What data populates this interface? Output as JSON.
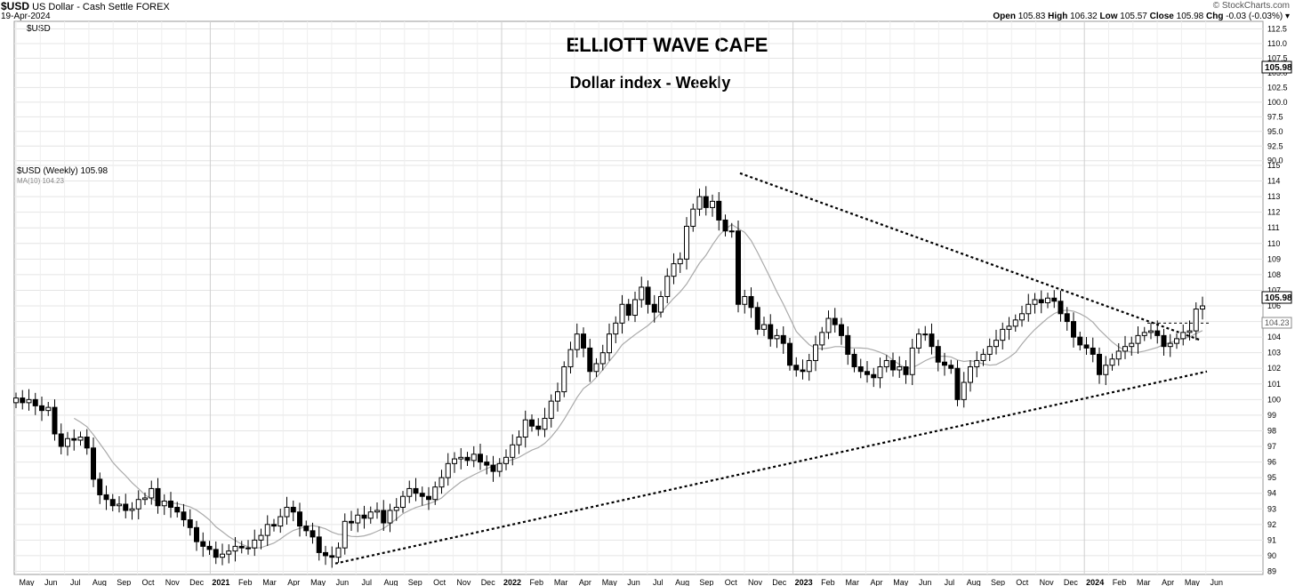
{
  "header": {
    "symbol": "$USD",
    "name": "US Dollar - Cash Settle",
    "exchange": "FOREX",
    "date": "19-Apr-2024",
    "source": "© StockCharts.com",
    "open_label": "Open",
    "open_value": "105.83",
    "high_label": "High",
    "high_value": "106.32",
    "low_label": "Low",
    "low_value": "105.57",
    "close_label": "Close",
    "close_value": "105.98",
    "chg_label": "Chg",
    "chg_value": "-0.03 (-0.03%)"
  },
  "top_panel": {
    "symbol": "$USD",
    "title": "ELLIOTT WAVE CAFE",
    "subtitle": "Dollar index - Weekly",
    "y_ticks": [
      "112.5",
      "110.0",
      "107.5",
      "105.0",
      "102.5",
      "100.0",
      "97.5",
      "95.0",
      "92.5",
      "90.0"
    ],
    "ylim": [
      89.2,
      113.8
    ],
    "price_tag": "105.98"
  },
  "chart_data": {
    "type": "candlestick",
    "legend": [
      "$USD (Weekly) 105.98",
      "MA(10) 104.23"
    ],
    "ylim": [
      88.8,
      115.0
    ],
    "y_ticks": [
      89,
      90,
      91,
      92,
      93,
      94,
      95,
      96,
      97,
      98,
      99,
      100,
      101,
      102,
      103,
      104,
      105,
      106,
      107,
      108,
      109,
      110,
      111,
      112,
      113,
      114,
      115
    ],
    "x_labels": [
      "May",
      "Jun",
      "Jul",
      "Aug",
      "Sep",
      "Oct",
      "Nov",
      "Dec",
      "2021",
      "Feb",
      "Mar",
      "Apr",
      "May",
      "Jun",
      "Jul",
      "Aug",
      "Sep",
      "Oct",
      "Nov",
      "Dec",
      "2022",
      "Feb",
      "Mar",
      "Apr",
      "May",
      "Jun",
      "Jul",
      "Aug",
      "Sep",
      "Oct",
      "Nov",
      "Dec",
      "2023",
      "Feb",
      "Mar",
      "Apr",
      "May",
      "Jun",
      "Jul",
      "Aug",
      "Sep",
      "Oct",
      "Nov",
      "Dec",
      "2024",
      "Feb",
      "Mar",
      "Apr",
      "May",
      "Jun"
    ],
    "x_month_index": [
      0,
      1,
      2,
      3,
      4,
      5,
      6,
      7,
      8,
      9,
      10,
      11,
      12,
      13,
      14,
      15,
      16,
      17,
      18,
      19,
      20,
      21,
      22,
      23,
      24,
      25,
      26,
      27,
      28,
      29,
      30,
      31,
      32,
      33,
      34,
      35,
      36,
      37,
      38,
      39,
      40,
      41,
      42,
      43,
      44,
      45,
      46,
      47,
      48,
      49
    ],
    "price_tags": [
      "105.98",
      "104.23"
    ],
    "weekly_close": [
      100.1,
      99.8,
      100.0,
      99.6,
      99.3,
      99.5,
      97.8,
      97.0,
      97.5,
      97.4,
      97.6,
      96.9,
      94.9,
      93.9,
      93.6,
      93.2,
      93.3,
      92.9,
      93.0,
      93.6,
      93.7,
      94.3,
      93.2,
      93.5,
      93.1,
      92.8,
      92.3,
      91.8,
      90.9,
      90.6,
      90.4,
      89.9,
      90.1,
      90.3,
      90.6,
      90.5,
      90.5,
      91.0,
      91.3,
      92.0,
      91.9,
      92.5,
      93.1,
      92.8,
      91.9,
      91.6,
      91.2,
      90.2,
      90.0,
      89.9,
      90.5,
      92.2,
      92.1,
      92.6,
      92.4,
      92.8,
      92.9,
      92.1,
      92.9,
      93.1,
      93.8,
      94.3,
      94.0,
      93.8,
      93.6,
      94.4,
      95.0,
      95.9,
      96.2,
      96.3,
      96.1,
      96.5,
      96.0,
      95.8,
      95.4,
      95.9,
      96.3,
      97.1,
      97.6,
      98.7,
      98.3,
      98.1,
      98.8,
      99.9,
      100.5,
      102.1,
      103.2,
      104.2,
      103.3,
      101.8,
      102.3,
      103.0,
      104.2,
      104.9,
      106.1,
      105.4,
      106.4,
      107.2,
      106.1,
      105.6,
      106.6,
      107.9,
      108.7,
      109.0,
      111.1,
      112.2,
      113.0,
      112.3,
      112.7,
      111.5,
      110.8,
      110.8,
      106.1,
      106.6,
      105.9,
      104.5,
      104.8,
      103.9,
      104.1,
      103.6,
      102.2,
      101.9,
      101.8,
      102.5,
      103.5,
      104.3,
      105.2,
      104.8,
      104.1,
      102.9,
      102.1,
      101.8,
      101.6,
      101.4,
      102.1,
      102.5,
      101.9,
      102.1,
      101.6,
      103.3,
      104.2,
      104.2,
      103.4,
      102.4,
      102.2,
      102.0,
      100.0,
      101.1,
      102.1,
      102.5,
      102.9,
      103.4,
      103.8,
      104.5,
      104.7,
      105.1,
      105.5,
      106.1,
      106.4,
      106.2,
      106.5,
      106.3,
      105.5,
      105.0,
      104.0,
      103.5,
      103.3,
      102.9,
      101.6,
      102.2,
      102.6,
      103.1,
      103.4,
      103.6,
      104.1,
      104.3,
      104.4,
      104.1,
      103.4,
      103.6,
      103.9,
      104.3,
      104.4,
      105.8,
      106.0
    ]
  }
}
